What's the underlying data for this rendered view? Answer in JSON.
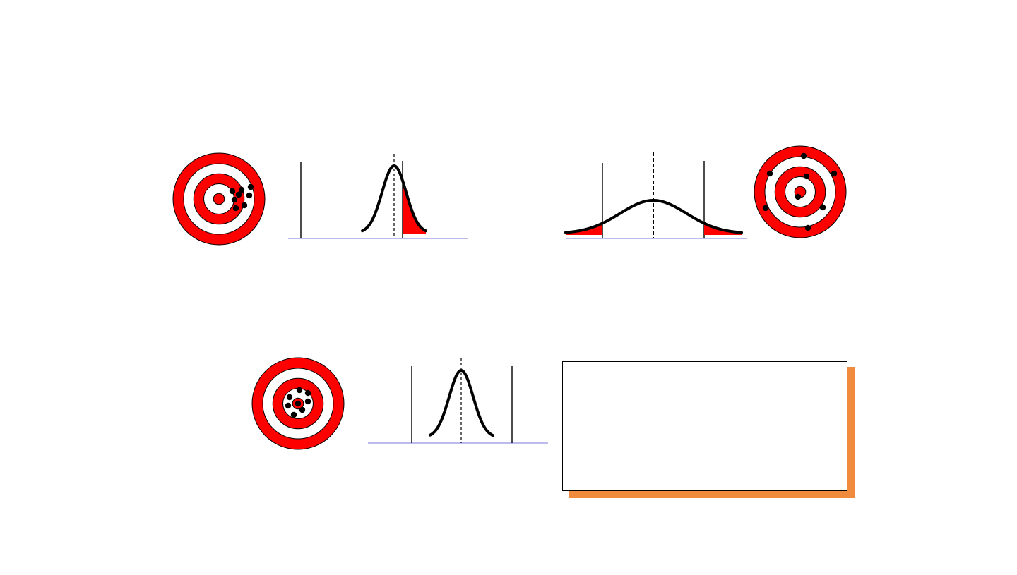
{
  "colors": {
    "target_red": "#ff0000",
    "ring_white": "#ffffff",
    "curve": "#000000",
    "tail_fill": "#ff0000",
    "baseline": "#7777dd",
    "callout_shadow": "#f08a3c",
    "callout_border": "#000000"
  },
  "panels": [
    {
      "id": "accurate-not-precise",
      "target": {
        "shots_description": "clustered-off-center",
        "shot_count": 7
      },
      "distribution": {
        "spread": "narrow",
        "mean_offset": "shifted",
        "tails_shaded": [
          "right"
        ]
      }
    },
    {
      "id": "precise-not-accurate",
      "target": {
        "shots_description": "scattered",
        "shot_count": 8
      },
      "distribution": {
        "spread": "wide",
        "mean_offset": "centered",
        "tails_shaded": [
          "left",
          "right"
        ]
      }
    },
    {
      "id": "accurate-and-precise",
      "target": {
        "shots_description": "tight-center",
        "shot_count": 7
      },
      "distribution": {
        "spread": "narrow",
        "mean_offset": "centered",
        "tails_shaded": []
      }
    }
  ],
  "callout": {
    "text": ""
  }
}
